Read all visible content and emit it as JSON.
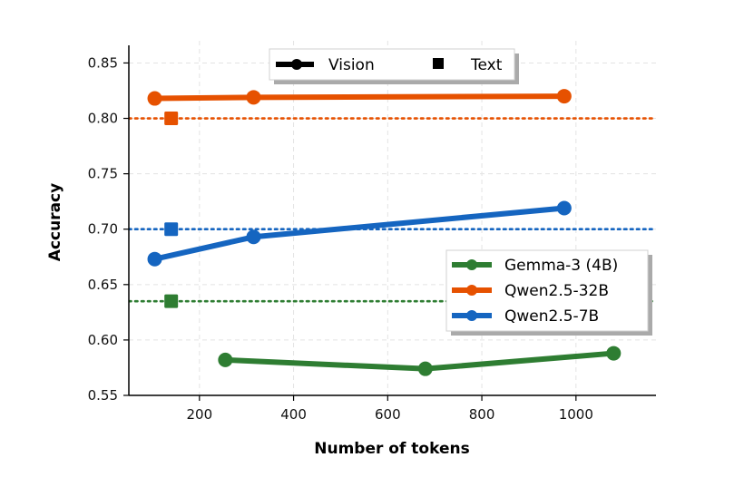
{
  "chart_data": {
    "type": "line",
    "title": "",
    "xlabel": "Number of tokens",
    "ylabel": "Accuracy",
    "xlim": [
      50,
      1170
    ],
    "ylim": [
      0.55,
      0.87
    ],
    "xticks": [
      200,
      400,
      600,
      800,
      1000
    ],
    "yticks": [
      0.55,
      0.6,
      0.65,
      0.7,
      0.75,
      0.8,
      0.85
    ],
    "grid": true,
    "series": [
      {
        "name": "Gemma-3 (4B)",
        "color": "#2e7d32",
        "vision": [
          [
            255,
            0.582
          ],
          [
            680,
            0.574
          ],
          [
            1080,
            0.588
          ]
        ],
        "text": [
          140,
          0.635
        ]
      },
      {
        "name": "Qwen2.5-32B",
        "color": "#e65100",
        "vision": [
          [
            105,
            0.818
          ],
          [
            315,
            0.819
          ],
          [
            975,
            0.82
          ]
        ],
        "text": [
          140,
          0.8
        ]
      },
      {
        "name": "Qwen2.5-7B",
        "color": "#1565c0",
        "vision": [
          [
            105,
            0.673
          ],
          [
            315,
            0.693
          ],
          [
            975,
            0.719
          ]
        ],
        "text": [
          140,
          0.7
        ]
      }
    ],
    "style_legend": {
      "placement": "top-center",
      "items": [
        {
          "label": "Vision",
          "marker": "line-circle"
        },
        {
          "label": "Text",
          "marker": "square"
        }
      ]
    },
    "model_legend_placement": "center-right"
  }
}
